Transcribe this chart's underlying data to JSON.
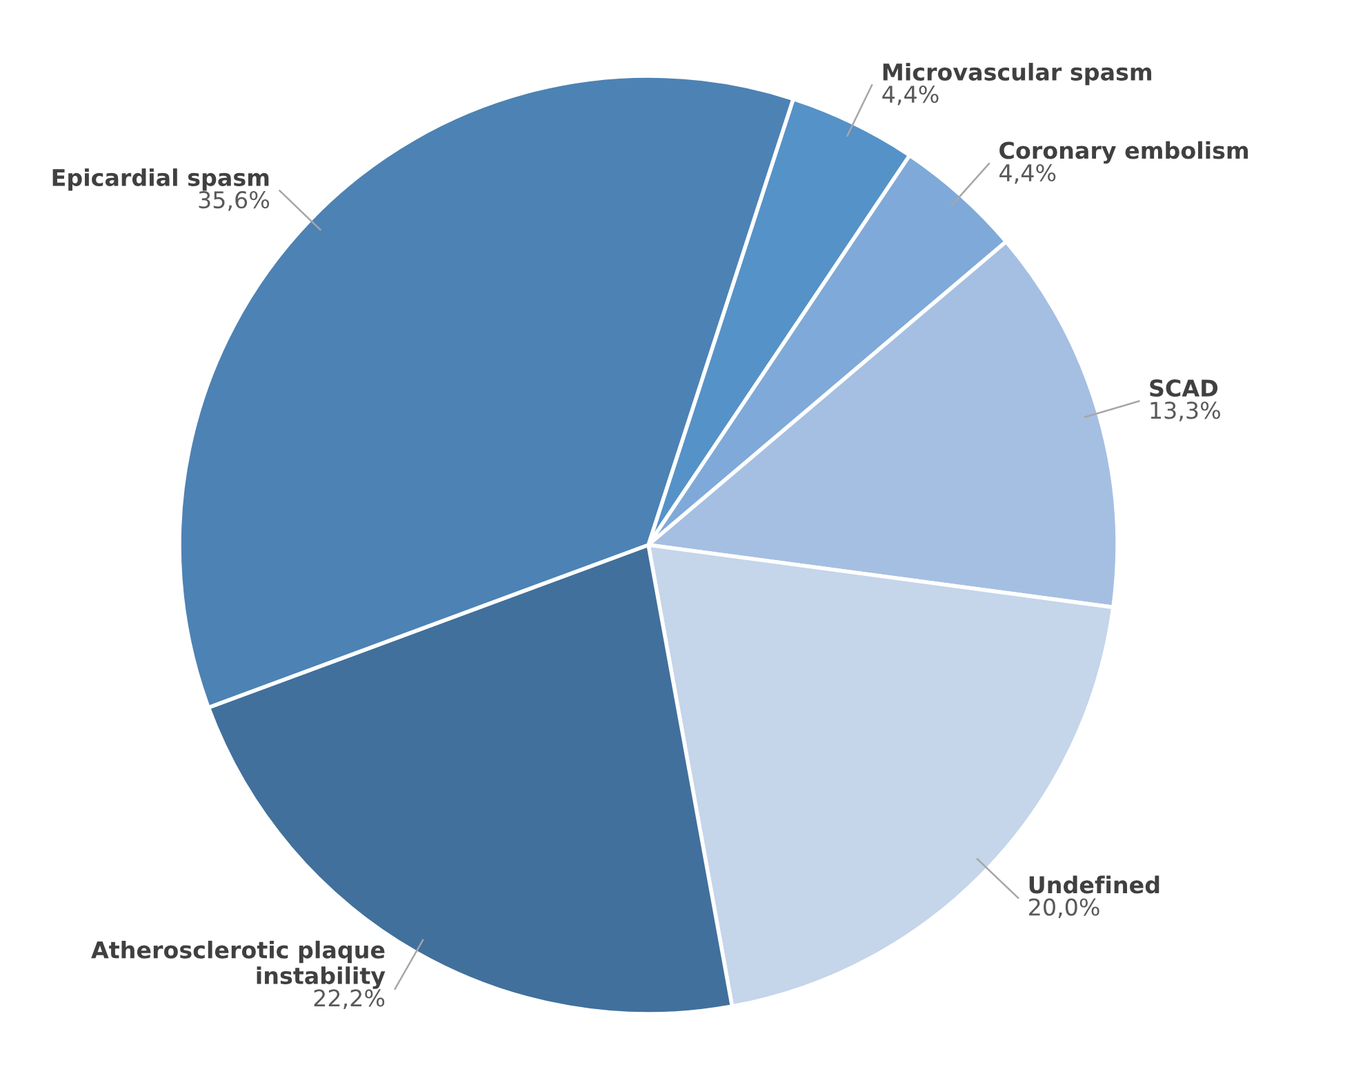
{
  "chart_data": {
    "type": "pie",
    "categories": [
      "Microvascular spasm",
      "Coronary embolism",
      "SCAD",
      "Undefined",
      "Atherosclerotic plaque instability",
      "Epicardial spasm"
    ],
    "values": [
      4.4,
      4.4,
      13.3,
      20.0,
      22.2,
      35.6
    ],
    "value_labels": [
      "4,4%",
      "4,4%",
      "13,3%",
      "20,0%",
      "22,2%",
      "35,6%"
    ],
    "colors": [
      "#5592c8",
      "#7fa9d8",
      "#a5bfe2",
      "#c5d5ea",
      "#41709c",
      "#4d82b4"
    ]
  }
}
